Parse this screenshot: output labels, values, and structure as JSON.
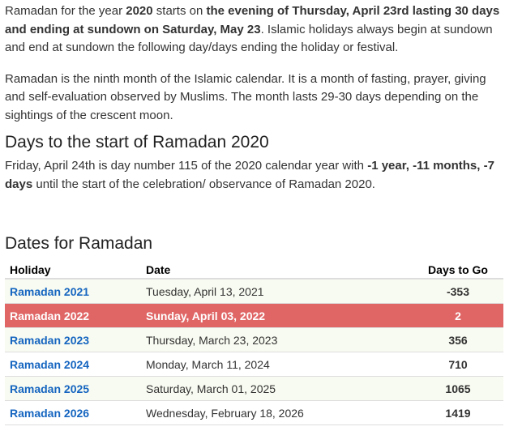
{
  "intro": {
    "p1_a": "Ramadan for the year ",
    "p1_b": "2020",
    "p1_c": " starts on ",
    "p1_d": "the evening of Thursday, April 23rd lasting 30 days and ending at sundown on Saturday, May 23",
    "p1_e": ". Islamic holidays always begin at sundown and end at sundown the following day/days ending the holiday or festival.",
    "p2": "Ramadan is the ninth month of the Islamic calendar. It is a month of fasting, prayer, giving and self-evaluation observed by Muslims. The month lasts 29-30 days depending on the sightings of the crescent moon."
  },
  "countdown": {
    "heading": "Days to the start of Ramadan 2020",
    "text_a": "Friday, April 24th is day number 115 of the 2020 calendar year with ",
    "text_b": "-1 year, -11 months, -7 days",
    "text_c": " until the start of the celebration/ observance of Ramadan 2020."
  },
  "dates": {
    "heading": "Dates for Ramadan",
    "columns": [
      "Holiday",
      "Date",
      "Days to Go"
    ],
    "rows": [
      {
        "holiday": "Ramadan 2021",
        "date": "Tuesday, April 13, 2021",
        "days": "-353"
      },
      {
        "holiday": "Ramadan 2022",
        "date": "Sunday, April 03, 2022",
        "days": "2"
      },
      {
        "holiday": "Ramadan 2023",
        "date": "Thursday, March 23, 2023",
        "days": "356"
      },
      {
        "holiday": "Ramadan 2024",
        "date": "Monday, March 11, 2024",
        "days": "710"
      },
      {
        "holiday": "Ramadan 2025",
        "date": "Saturday, March 01, 2025",
        "days": "1065"
      },
      {
        "holiday": "Ramadan 2026",
        "date": "Wednesday, February 18, 2026",
        "days": "1419"
      }
    ],
    "highlight_color": "#e06666",
    "link_color": "#1565c0"
  }
}
